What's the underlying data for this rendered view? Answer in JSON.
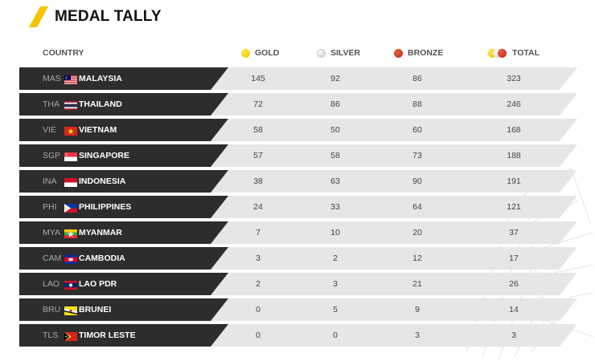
{
  "title": "MEDAL TALLY",
  "header": {
    "country": "COUNTRY",
    "gold": "GOLD",
    "silver": "SILVER",
    "bronze": "BRONZE",
    "total": "TOTAL"
  },
  "colors": {
    "accent": "#f5c400",
    "gold": "#f2c400",
    "silver": "#c8c8c8",
    "bronze": "#b8281a",
    "row_dark": "#2d2d2d",
    "row_light": "#e6e6e6"
  },
  "icons": [
    "title-slash-icon",
    "gold-medal-icon",
    "silver-medal-icon",
    "bronze-medal-icon",
    "total-medals-icon"
  ],
  "rows": [
    {
      "code": "MAS",
      "country": "MALAYSIA",
      "flag": "malaysia-flag-icon",
      "gold": "145",
      "silver": "92",
      "bronze": "86",
      "total": "323"
    },
    {
      "code": "THA",
      "country": "THAILAND",
      "flag": "thailand-flag-icon",
      "gold": "72",
      "silver": "86",
      "bronze": "88",
      "total": "246"
    },
    {
      "code": "VIE",
      "country": "VIETNAM",
      "flag": "vietnam-flag-icon",
      "gold": "58",
      "silver": "50",
      "bronze": "60",
      "total": "168"
    },
    {
      "code": "SGP",
      "country": "SINGAPORE",
      "flag": "singapore-flag-icon",
      "gold": "57",
      "silver": "58",
      "bronze": "73",
      "total": "188"
    },
    {
      "code": "INA",
      "country": "INDONESIA",
      "flag": "indonesia-flag-icon",
      "gold": "38",
      "silver": "63",
      "bronze": "90",
      "total": "191"
    },
    {
      "code": "PHI",
      "country": "PHILIPPINES",
      "flag": "philippines-flag-icon",
      "gold": "24",
      "silver": "33",
      "bronze": "64",
      "total": "121"
    },
    {
      "code": "MYA",
      "country": "MYANMAR",
      "flag": "myanmar-flag-icon",
      "gold": "7",
      "silver": "10",
      "bronze": "20",
      "total": "37"
    },
    {
      "code": "CAM",
      "country": "CAMBODIA",
      "flag": "cambodia-flag-icon",
      "gold": "3",
      "silver": "2",
      "bronze": "12",
      "total": "17"
    },
    {
      "code": "LAO",
      "country": "LAO PDR",
      "flag": "laos-flag-icon",
      "gold": "2",
      "silver": "3",
      "bronze": "21",
      "total": "26"
    },
    {
      "code": "BRU",
      "country": "BRUNEI",
      "flag": "brunei-flag-icon",
      "gold": "0",
      "silver": "5",
      "bronze": "9",
      "total": "14"
    },
    {
      "code": "TLS",
      "country": "TIMOR LESTE",
      "flag": "timor-leste-flag-icon",
      "gold": "0",
      "silver": "0",
      "bronze": "3",
      "total": "3"
    }
  ]
}
